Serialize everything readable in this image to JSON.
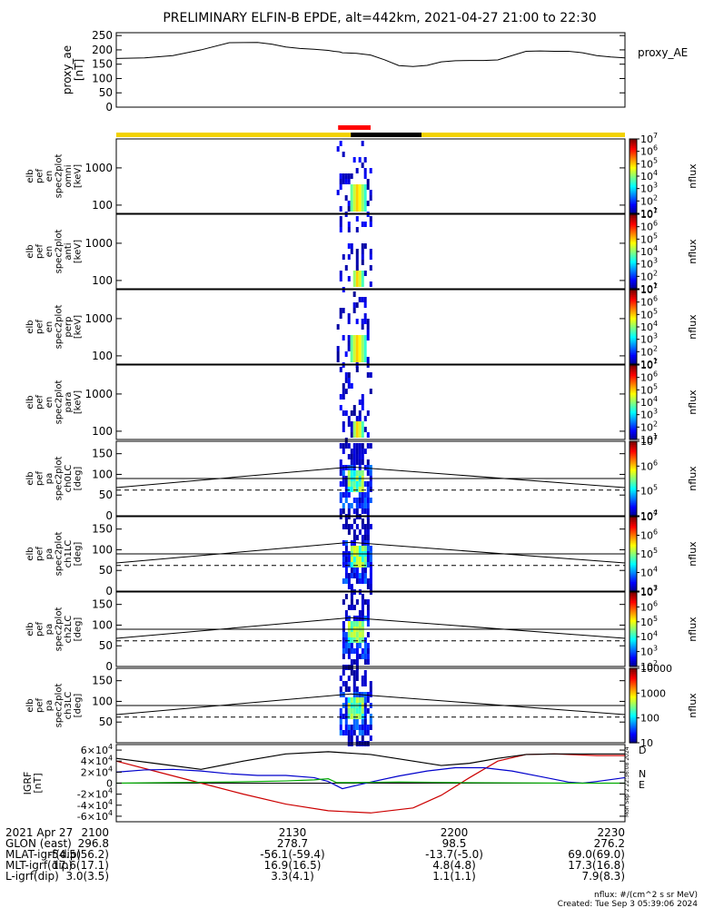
{
  "title": "PRELIMINARY ELFIN-B EPDE, alt=442km, 2021-04-27 21:00 to 22:30",
  "colors": {
    "orbit_bar": "#f2d200",
    "night_bar": "#000000",
    "science_bar": "#ff0000",
    "geo_D": "#cc0000",
    "geo_N": "#0000cc",
    "geo_E": "#00aa00",
    "geo_total": "#000000"
  },
  "footer": {
    "rows": [
      {
        "label": "2021 Apr 27",
        "values": [
          "2100",
          "2130",
          "2200",
          "2230"
        ]
      },
      {
        "label": "GLON (east)",
        "values": [
          "296.8",
          "278.7",
          "98.5",
          "276.2"
        ]
      },
      {
        "label": "MLAT-igrf(dip)",
        "values": [
          "-54.5(56.2)",
          "-56.1(-59.4)",
          "-13.7(-5.0)",
          "69.0(69.0)"
        ]
      },
      {
        "label": "MLT-igrf(dip)",
        "values": [
          "17.6(17.1)",
          "16.9(16.5)",
          "4.8(4.8)",
          "17.3(16.8)"
        ]
      },
      {
        "label": "L-igrf(dip)",
        "values": [
          "3.0(3.5)",
          "3.3(4.1)",
          "1.1(1.1)",
          "7.9(8.3)"
        ]
      }
    ],
    "units_note": "nflux: #/(cm^2 s sr MeV)",
    "created": "Created: Tue Sep  3 05:39:06 2024",
    "side_stamp": "Mon Sep  2 22:36:08 2024"
  },
  "chart_data": [
    {
      "panel": "proxy_ae",
      "type": "line",
      "ylabel": [
        "proxy_ae",
        "[nT]"
      ],
      "legend": "proxy_AE",
      "yticks": [
        "250",
        "200",
        "150",
        "100",
        "50",
        "0"
      ],
      "ylim": [
        0,
        260
      ],
      "x_minutes": [
        0,
        10,
        20,
        30,
        40,
        50,
        55,
        60,
        65,
        70,
        75,
        77,
        79,
        80,
        85,
        90,
        95,
        100,
        105,
        110,
        115,
        120,
        125,
        130,
        135,
        140,
        145,
        150,
        155,
        160,
        165,
        170,
        175,
        180
      ],
      "values": [
        170,
        172,
        180,
        200,
        225,
        226,
        220,
        210,
        205,
        202,
        198,
        195,
        193,
        190,
        188,
        182,
        165,
        145,
        142,
        146,
        158,
        162,
        163,
        163,
        165,
        180,
        195,
        196,
        195,
        195,
        190,
        180,
        175,
        172
      ]
    },
    {
      "panel": "orbit_bar",
      "type": "bar",
      "segments": [
        {
          "name": "night",
          "start": 83,
          "end": 108
        }
      ],
      "science": [
        {
          "name": "science",
          "start": 78.5,
          "end": 90
        }
      ]
    },
    {
      "panel": "spec_omni",
      "type": "heatmap",
      "ylabel": [
        "elb",
        "pef",
        "en",
        "spec2plot",
        "omni",
        "[keV]"
      ],
      "yticks": [
        "1000",
        "100"
      ],
      "ylim_keV": [
        60,
        6000
      ],
      "colorbar": {
        "label": "nflux",
        "range": [
          1,
          7
        ],
        "ticks": [
          "10^7",
          "10^6",
          "10^5",
          "10^4",
          "10^3",
          "10^2",
          "10^1"
        ]
      },
      "active_interval_min": [
        78,
        90
      ],
      "peak_interval_min": [
        82,
        88
      ],
      "peak_energy_keV": [
        80,
        400
      ]
    },
    {
      "panel": "spec_anti",
      "type": "heatmap",
      "ylabel": [
        "elb",
        "pef",
        "en",
        "spec2plot",
        "anti",
        "[keV]"
      ],
      "yticks": [
        "1000",
        "100"
      ],
      "ylim_keV": [
        60,
        6000
      ],
      "colorbar": {
        "label": "nflux",
        "range": [
          1,
          7
        ],
        "ticks": [
          "10^7",
          "10^6",
          "10^5",
          "10^4",
          "10^3",
          "10^2",
          "10^1"
        ]
      },
      "active_interval_min": [
        79,
        90
      ],
      "peak_interval_min": [
        83,
        87
      ],
      "peak_energy_keV": [
        80,
        250
      ]
    },
    {
      "panel": "spec_perp",
      "type": "heatmap",
      "ylabel": [
        "elb",
        "pef",
        "en",
        "spec2plot",
        "perp",
        "[keV]"
      ],
      "yticks": [
        "1000",
        "100"
      ],
      "ylim_keV": [
        60,
        6000
      ],
      "colorbar": {
        "label": "nflux",
        "range": [
          1,
          7
        ],
        "ticks": [
          "10^7",
          "10^6",
          "10^5",
          "10^4",
          "10^3",
          "10^2",
          "10^1"
        ]
      },
      "active_interval_min": [
        78,
        90
      ],
      "peak_interval_min": [
        82,
        88
      ],
      "peak_energy_keV": [
        80,
        400
      ]
    },
    {
      "panel": "spec_para",
      "type": "heatmap",
      "ylabel": [
        "elb",
        "pef",
        "en",
        "spec2plot",
        "para",
        "[keV]"
      ],
      "yticks": [
        "1000",
        "100"
      ],
      "ylim_keV": [
        60,
        6000
      ],
      "colorbar": {
        "label": "nflux",
        "range": [
          1,
          7
        ],
        "ticks": [
          "10^7",
          "10^6",
          "10^5",
          "10^4",
          "10^3",
          "10^2",
          "10^1"
        ]
      },
      "active_interval_min": [
        79,
        90
      ],
      "peak_interval_min": [
        83,
        87
      ],
      "peak_energy_keV": [
        80,
        200
      ]
    },
    {
      "panel": "pa_ch0LC",
      "type": "heatmap",
      "ylabel": [
        "elb",
        "pef",
        "pa",
        "spec2plot",
        "ch0LC",
        "[deg]"
      ],
      "yticks": [
        "150",
        "100",
        "50",
        "0"
      ],
      "ylim_deg": [
        0,
        180
      ],
      "colorbar": {
        "label": "nflux",
        "range": [
          4,
          7
        ],
        "ticks": [
          "10^7",
          "10^6",
          "10^5",
          "10^4"
        ]
      },
      "active_interval_min": [
        79,
        90
      ],
      "reference_line_deg": 90,
      "loss_cone_deg": {
        "x_minutes": [
          0,
          83,
          180
        ],
        "values": [
          68,
          118,
          68
        ]
      },
      "anti_loss_cone_deg": 62
    },
    {
      "panel": "pa_ch1LC",
      "type": "heatmap",
      "ylabel": [
        "elb",
        "pef",
        "pa",
        "spec2plot",
        "ch1LC",
        "[deg]"
      ],
      "yticks": [
        "150",
        "100",
        "50",
        "0"
      ],
      "ylim_deg": [
        0,
        180
      ],
      "colorbar": {
        "label": "nflux",
        "range": [
          3,
          7
        ],
        "ticks": [
          "10^7",
          "10^6",
          "10^5",
          "10^4",
          "10^3"
        ]
      },
      "active_interval_min": [
        80,
        90
      ],
      "reference_line_deg": 90,
      "loss_cone_deg": {
        "x_minutes": [
          0,
          83,
          180
        ],
        "values": [
          68,
          118,
          68
        ]
      },
      "anti_loss_cone_deg": 62
    },
    {
      "panel": "pa_ch2LC",
      "type": "heatmap",
      "ylabel": [
        "elb",
        "pef",
        "pa",
        "spec2plot",
        "ch2LC",
        "[deg]"
      ],
      "yticks": [
        "150",
        "100",
        "50",
        "0"
      ],
      "ylim_deg": [
        0,
        180
      ],
      "colorbar": {
        "label": "nflux",
        "range": [
          2,
          7
        ],
        "ticks": [
          "10^7",
          "10^6",
          "10^5",
          "10^4",
          "10^3",
          "10^2"
        ]
      },
      "active_interval_min": [
        80,
        89
      ],
      "reference_line_deg": 90,
      "loss_cone_deg": {
        "x_minutes": [
          0,
          83,
          180
        ],
        "values": [
          68,
          118,
          68
        ]
      },
      "anti_loss_cone_deg": 62
    },
    {
      "panel": "pa_ch3LC",
      "type": "heatmap",
      "ylabel": [
        "elb",
        "pef",
        "pa",
        "spec2plot",
        "ch3LC",
        "[deg]"
      ],
      "yticks": [
        "150",
        "100",
        "50"
      ],
      "ylim_deg": [
        0,
        180
      ],
      "colorbar": {
        "label": "nflux",
        "range": [
          1,
          4
        ],
        "ticks": [
          "10000",
          "1000",
          "100",
          "10"
        ]
      },
      "active_interval_min": [
        79,
        90
      ],
      "reference_line_deg": 90,
      "loss_cone_deg": {
        "x_minutes": [
          0,
          83,
          180
        ],
        "values": [
          68,
          118,
          68
        ]
      },
      "anti_loss_cone_deg": 62
    },
    {
      "panel": "igrf",
      "type": "line",
      "ylabel": [
        "IGRF",
        "[nT]"
      ],
      "yticks": [
        "6x10^4",
        "4x10^4",
        "2x10^4",
        "0",
        "-2x10^4",
        "-4x10^4",
        "-6x10^4"
      ],
      "ylim": [
        -70000,
        70000
      ],
      "series": [
        {
          "name": "D",
          "color": "#cc0000",
          "x_minutes": [
            0,
            15,
            30,
            45,
            60,
            75,
            90,
            105,
            115,
            125,
            135,
            145,
            155,
            160,
            170,
            180
          ],
          "values": [
            40000,
            20000,
            0,
            -20000,
            -38000,
            -50000,
            -54000,
            -45000,
            -22000,
            10000,
            40000,
            52000,
            53000,
            52000,
            50000,
            50000
          ]
        },
        {
          "name": "N",
          "color": "#0000cc",
          "x_minutes": [
            0,
            10,
            20,
            30,
            40,
            50,
            60,
            70,
            75,
            80,
            90,
            100,
            110,
            120,
            130,
            140,
            150,
            160,
            165,
            170,
            180
          ],
          "values": [
            20000,
            24000,
            25000,
            22000,
            17000,
            14000,
            14000,
            10000,
            3000,
            -10000,
            2000,
            13000,
            22000,
            28000,
            28000,
            22000,
            12000,
            2000,
            0,
            3000,
            10000
          ]
        },
        {
          "name": "E",
          "color": "#00aa00",
          "x_minutes": [
            0,
            20,
            40,
            60,
            70,
            75,
            78,
            85,
            100,
            120,
            140,
            160,
            180
          ],
          "values": [
            0,
            1000,
            2000,
            4000,
            6000,
            8000,
            1000,
            1000,
            2000,
            1000,
            500,
            0,
            0
          ]
        },
        {
          "name": "total",
          "color": "#000000",
          "x_minutes": [
            0,
            15,
            30,
            45,
            60,
            75,
            90,
            105,
            115,
            125,
            135,
            145,
            155,
            165,
            180
          ],
          "values": [
            45000,
            35000,
            25000,
            40000,
            53000,
            57000,
            52000,
            40000,
            32000,
            36000,
            45000,
            52000,
            53000,
            53000,
            53000
          ]
        }
      ],
      "legend_labels": [
        "D",
        "N",
        "E"
      ]
    }
  ]
}
